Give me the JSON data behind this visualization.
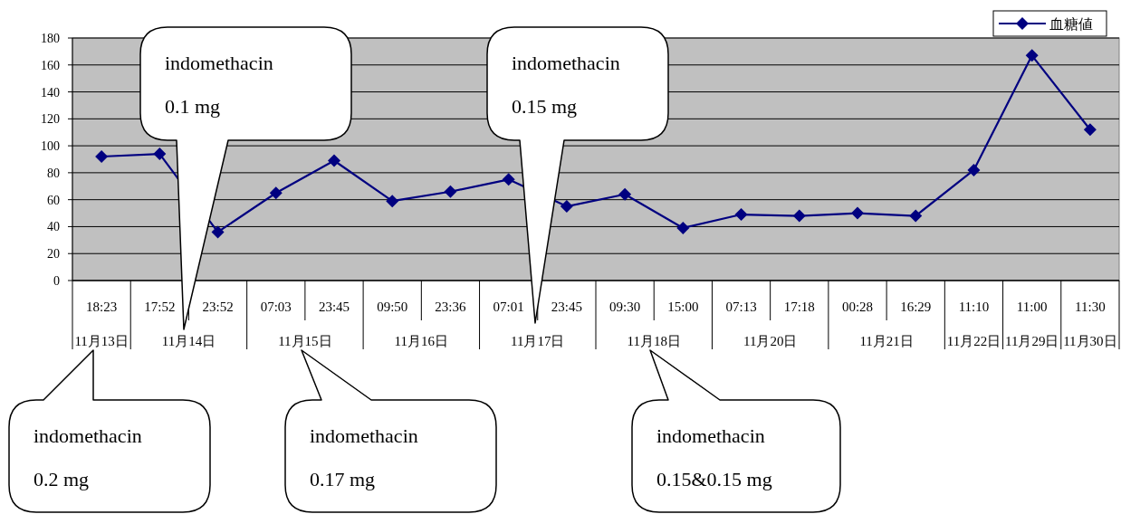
{
  "chart_data": {
    "type": "line",
    "categories": [
      "18:23",
      "17:52",
      "23:52",
      "07:03",
      "23:45",
      "09:50",
      "23:36",
      "07:01",
      "23:45",
      "09:30",
      "15:00",
      "07:13",
      "17:18",
      "00:28",
      "16:29",
      "11:10",
      "11:00",
      "11:30"
    ],
    "series": [
      {
        "name": "血糖値",
        "color": "#000080",
        "values": [
          92,
          94,
          36,
          65,
          89,
          59,
          66,
          75,
          55,
          64,
          39,
          49,
          48,
          50,
          48,
          82,
          167,
          112
        ]
      }
    ],
    "ylim": [
      0,
      180
    ],
    "yticks": [
      0,
      20,
      40,
      60,
      80,
      100,
      120,
      140,
      160,
      180
    ],
    "grid": "y",
    "legend": "top right",
    "marker": "diamond",
    "line_style": "solid",
    "annotations": [
      "11月13日",
      "11月14日",
      "11月15日",
      "11月16日",
      "11月17日",
      "11月18日",
      "11月20日",
      "11月21日",
      "11月22日",
      "11月29日",
      "11月30日",
      "indomethacin\n0.1 mg",
      "indomethacin\n0.15 mg",
      "indomethacin\n0.2 mg",
      "indomethacin\n0.17 mg",
      "indomethacin\n0.15&0.15 mg"
    ]
  }
}
